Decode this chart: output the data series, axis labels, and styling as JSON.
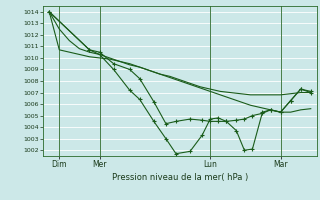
{
  "bg_color": "#cce8e8",
  "plot_bg_color": "#cce8e8",
  "grid_color": "#ffffff",
  "line_color": "#1a5c1a",
  "xlabel": "Pression niveau de la mer( hPa )",
  "yticks": [
    1002,
    1003,
    1004,
    1005,
    1006,
    1007,
    1008,
    1009,
    1010,
    1011,
    1012,
    1013,
    1014
  ],
  "ylim": [
    1001.5,
    1014.5
  ],
  "xlim": [
    -0.3,
    13.3
  ],
  "xtick_labels": [
    "Dim",
    "Mer",
    "Lun",
    "Mar"
  ],
  "xtick_positions": [
    0.5,
    2.5,
    8.0,
    11.5
  ],
  "vline_positions": [
    0.5,
    2.5,
    8.0,
    11.5
  ],
  "lines": [
    {
      "x": [
        0,
        0.5,
        1.0,
        1.5,
        2.0,
        2.5,
        3.0,
        3.5,
        4.0,
        4.5,
        5.0,
        5.5,
        6.0,
        6.5,
        7.0,
        7.5,
        8.0,
        8.5,
        9.0,
        9.5,
        10.0,
        10.5,
        11.0,
        11.5,
        12.0,
        12.5,
        13.0
      ],
      "y": [
        1014,
        1012.5,
        1011.5,
        1010.8,
        1010.5,
        1010.3,
        1010.0,
        1009.7,
        1009.4,
        1009.2,
        1008.9,
        1008.6,
        1008.3,
        1008.0,
        1007.7,
        1007.4,
        1007.1,
        1006.8,
        1006.5,
        1006.2,
        1005.9,
        1005.7,
        1005.5,
        1005.3,
        1005.3,
        1005.5,
        1005.6
      ],
      "has_markers": false
    },
    {
      "x": [
        0,
        0.5,
        1.0,
        1.5,
        2.0,
        2.5,
        3.0,
        3.5,
        4.0,
        4.5,
        5.0,
        5.5,
        6.0,
        6.5,
        7.0,
        7.5,
        8.0,
        8.5,
        9.0,
        9.5,
        10.0,
        10.5,
        11.0,
        11.5,
        12.0,
        12.5,
        13.0
      ],
      "y": [
        1014,
        1010.7,
        1010.5,
        1010.3,
        1010.1,
        1010.0,
        1009.9,
        1009.7,
        1009.5,
        1009.2,
        1008.9,
        1008.6,
        1008.4,
        1008.1,
        1007.8,
        1007.5,
        1007.3,
        1007.1,
        1007.0,
        1006.9,
        1006.8,
        1006.8,
        1006.8,
        1006.8,
        1006.9,
        1007.0,
        1007.0
      ],
      "has_markers": false
    },
    {
      "x": [
        0,
        2.0,
        2.5,
        3.2,
        4.0,
        4.5,
        5.2,
        5.8,
        6.3,
        7.0,
        7.6,
        8.0,
        8.4,
        8.8,
        9.3,
        9.7,
        10.1,
        10.6,
        11.0,
        11.5,
        12.0,
        12.5,
        13.0
      ],
      "y": [
        1014,
        1010.7,
        1010.3,
        1009.0,
        1007.2,
        1006.4,
        1004.5,
        1003.0,
        1001.7,
        1001.9,
        1003.3,
        1004.7,
        1004.8,
        1004.5,
        1003.7,
        1002.0,
        1002.1,
        1005.3,
        1005.5,
        1005.3,
        1006.3,
        1007.3,
        1007.0
      ],
      "has_markers": true
    },
    {
      "x": [
        0,
        2.0,
        2.5,
        3.2,
        4.0,
        4.5,
        5.2,
        5.8,
        6.3,
        7.0,
        7.6,
        8.0,
        8.4,
        8.8,
        9.3,
        9.7,
        10.1,
        10.6,
        11.0,
        11.5,
        12.0,
        12.5,
        13.0
      ],
      "y": [
        1014,
        1010.7,
        1010.5,
        1009.5,
        1009.0,
        1008.2,
        1006.2,
        1004.3,
        1004.5,
        1004.7,
        1004.6,
        1004.5,
        1004.5,
        1004.5,
        1004.6,
        1004.7,
        1005.0,
        1005.2,
        1005.5,
        1005.3,
        1006.3,
        1007.3,
        1007.1
      ],
      "has_markers": true
    }
  ]
}
